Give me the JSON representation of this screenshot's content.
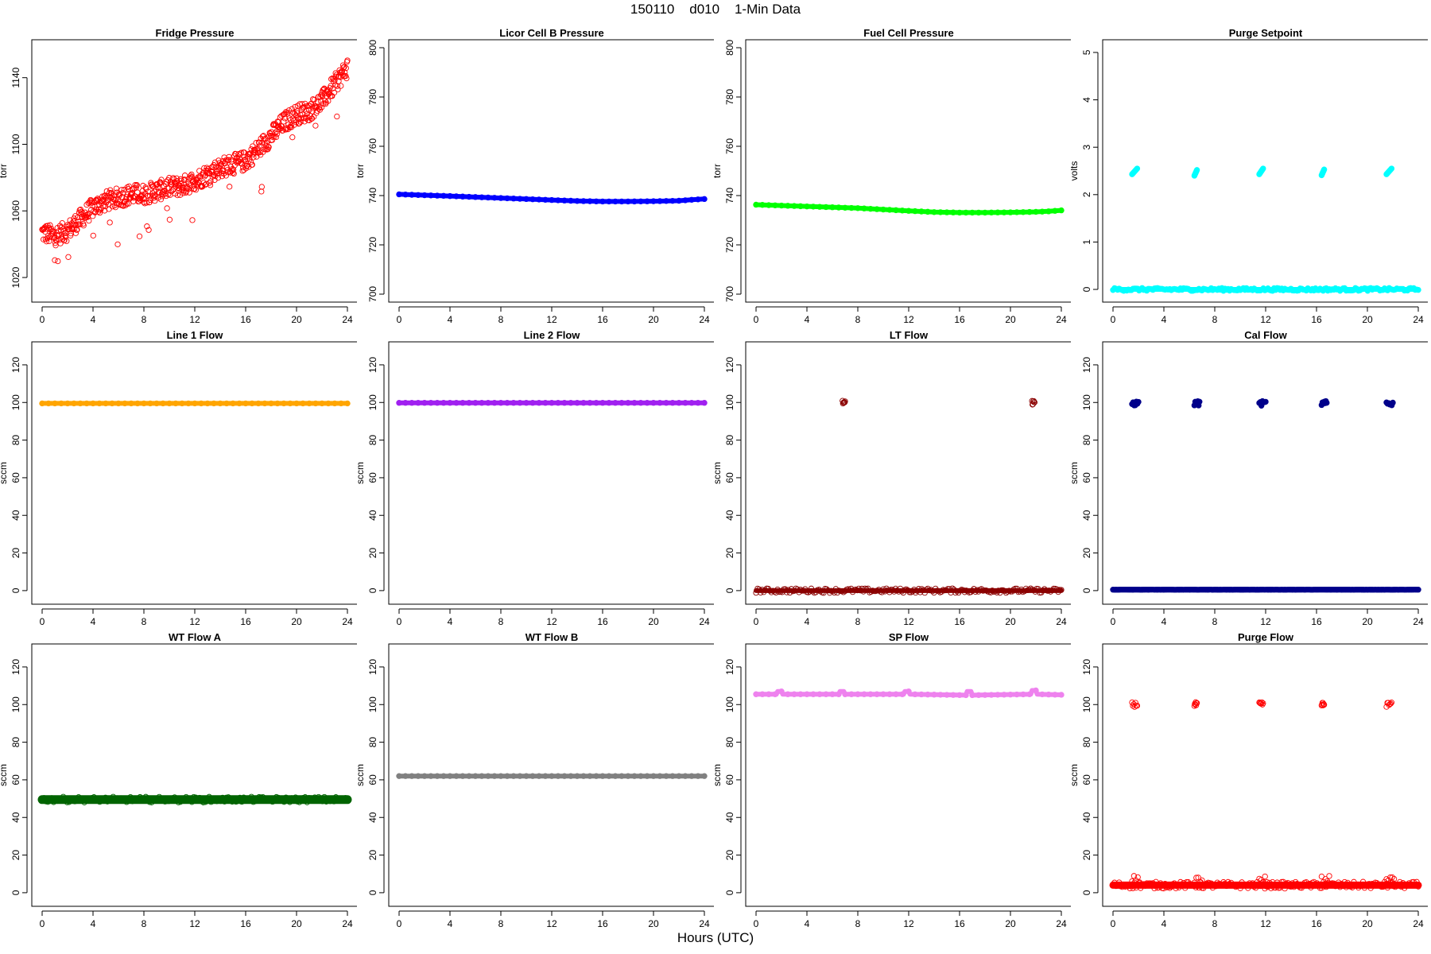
{
  "page": {
    "title": "150110    d010    1-Min Data",
    "x_caption": "Hours (UTC)"
  },
  "colors": {
    "fridge": "#ff0000",
    "licor": "#0000ff",
    "fuel": "#00ff00",
    "purge_setpoint": "#00ffff",
    "line1": "#ffa500",
    "line2": "#a020f0",
    "lt": "#8b0000",
    "cal": "#00008b",
    "wt_a": "#006400",
    "wt_b": "#808080",
    "sp": "#ee82ee",
    "purge_flow": "#ff0000"
  },
  "chart_data": [
    {
      "id": "fridge-pressure",
      "type": "scatter",
      "title": "Fridge Pressure",
      "xlabel": "",
      "ylabel": "torr",
      "marker": "open-circle",
      "color": "#ff0000",
      "xlim": [
        0,
        24
      ],
      "ylim": [
        1010,
        1158
      ],
      "xticks": [
        0,
        4,
        8,
        12,
        16,
        20,
        24
      ],
      "yticks": [
        1020,
        1060,
        1100,
        1140
      ],
      "trend": {
        "x": [
          0,
          1,
          2,
          3,
          4,
          5,
          6,
          7,
          8,
          9,
          10,
          11,
          12,
          13,
          14,
          15,
          16,
          17,
          18,
          19,
          20,
          21,
          22,
          23,
          24
        ],
        "y": [
          1047,
          1045,
          1048,
          1055,
          1062,
          1066,
          1068,
          1070,
          1070,
          1072,
          1074,
          1075,
          1078,
          1082,
          1086,
          1088,
          1090,
          1097,
          1105,
          1113,
          1118,
          1120,
          1126,
          1136,
          1146
        ]
      },
      "noise": 6
    },
    {
      "id": "licor-cell-b-pressure",
      "type": "line",
      "title": "Licor Cell B Pressure",
      "xlabel": "",
      "ylabel": "torr",
      "marker": "filled-circle",
      "color": "#0000ff",
      "xlim": [
        0,
        24
      ],
      "ylim": [
        700,
        800
      ],
      "xticks": [
        0,
        4,
        8,
        12,
        16,
        20,
        24
      ],
      "yticks": [
        700,
        720,
        740,
        760,
        780,
        800
      ],
      "x": [
        0,
        4,
        8,
        12,
        14,
        16,
        18,
        20,
        22,
        23,
        24
      ],
      "y": [
        740.5,
        739.8,
        739.0,
        738.2,
        737.8,
        737.6,
        737.6,
        737.7,
        737.9,
        738.3,
        738.6
      ]
    },
    {
      "id": "fuel-cell-pressure",
      "type": "line",
      "title": "Fuel Cell Pressure",
      "xlabel": "",
      "ylabel": "torr",
      "marker": "filled-circle",
      "color": "#00ff00",
      "xlim": [
        0,
        24
      ],
      "ylim": [
        700,
        800
      ],
      "xticks": [
        0,
        4,
        8,
        12,
        16,
        20,
        24
      ],
      "yticks": [
        700,
        720,
        740,
        760,
        780,
        800
      ],
      "x": [
        0,
        4,
        8,
        12,
        14,
        16,
        18,
        20,
        22,
        23,
        24
      ],
      "y": [
        736.3,
        735.6,
        734.9,
        733.8,
        733.3,
        733.1,
        733.1,
        733.2,
        733.4,
        733.6,
        734.0
      ]
    },
    {
      "id": "purge-setpoint",
      "type": "scatter",
      "title": "Purge Setpoint",
      "xlabel": "",
      "ylabel": "volts",
      "marker": "filled-circle",
      "color": "#00ffff",
      "xlim": [
        0,
        24
      ],
      "ylim": [
        -0.1,
        5.1
      ],
      "xticks": [
        0,
        4,
        8,
        12,
        16,
        20,
        24
      ],
      "yticks": [
        0,
        1,
        2,
        3,
        4,
        5
      ],
      "baseline": 0,
      "bursts": [
        {
          "x0": 1.5,
          "x1": 1.9,
          "y": 2.5
        },
        {
          "x0": 6.4,
          "x1": 6.6,
          "y": 2.47
        },
        {
          "x0": 11.5,
          "x1": 11.8,
          "y": 2.5
        },
        {
          "x0": 16.4,
          "x1": 16.6,
          "y": 2.48
        },
        {
          "x0": 21.5,
          "x1": 21.9,
          "y": 2.5
        }
      ]
    },
    {
      "id": "line-1-flow",
      "type": "line",
      "title": "Line 1 Flow",
      "xlabel": "",
      "ylabel": "sccm",
      "marker": "filled-circle",
      "color": "#ffa500",
      "xlim": [
        0,
        24
      ],
      "ylim": [
        -3,
        128
      ],
      "xticks": [
        0,
        4,
        8,
        12,
        16,
        20,
        24
      ],
      "yticks": [
        0,
        20,
        40,
        60,
        80,
        100,
        120
      ],
      "x": [
        0,
        24
      ],
      "y": [
        99.5,
        99.5
      ]
    },
    {
      "id": "line-2-flow",
      "type": "line",
      "title": "Line 2 Flow",
      "xlabel": "",
      "ylabel": "sccm",
      "marker": "filled-circle",
      "color": "#a020f0",
      "xlim": [
        0,
        24
      ],
      "ylim": [
        -3,
        128
      ],
      "xticks": [
        0,
        4,
        8,
        12,
        16,
        20,
        24
      ],
      "yticks": [
        0,
        20,
        40,
        60,
        80,
        100,
        120
      ],
      "x": [
        0,
        24
      ],
      "y": [
        99.8,
        99.8
      ]
    },
    {
      "id": "lt-flow",
      "type": "scatter",
      "title": "LT Flow",
      "xlabel": "",
      "ylabel": "sccm",
      "marker": "open-circle",
      "color": "#8b0000",
      "xlim": [
        0,
        24
      ],
      "ylim": [
        -3,
        128
      ],
      "xticks": [
        0,
        4,
        8,
        12,
        16,
        20,
        24
      ],
      "yticks": [
        0,
        20,
        40,
        60,
        80,
        100,
        120
      ],
      "baseline": 0,
      "bursts": [
        {
          "x0": 6.8,
          "x1": 7.0,
          "y": 100
        },
        {
          "x0": 21.7,
          "x1": 21.9,
          "y": 100
        }
      ]
    },
    {
      "id": "cal-flow",
      "type": "scatter",
      "title": "Cal Flow",
      "xlabel": "",
      "ylabel": "sccm",
      "marker": "filled-circle",
      "color": "#00008b",
      "xlim": [
        0,
        24
      ],
      "ylim": [
        -3,
        128
      ],
      "xticks": [
        0,
        4,
        8,
        12,
        16,
        20,
        24
      ],
      "yticks": [
        0,
        20,
        40,
        60,
        80,
        100,
        120
      ],
      "baseline": 0.5,
      "bursts": [
        {
          "x0": 1.5,
          "x1": 2.0,
          "y": 99.5
        },
        {
          "x0": 6.4,
          "x1": 6.8,
          "y": 99.5
        },
        {
          "x0": 11.5,
          "x1": 12.0,
          "y": 99.5
        },
        {
          "x0": 16.4,
          "x1": 16.8,
          "y": 99.5
        },
        {
          "x0": 21.5,
          "x1": 22.0,
          "y": 99.5
        }
      ]
    },
    {
      "id": "wt-flow-a",
      "type": "line",
      "title": "WT Flow A",
      "xlabel": "",
      "ylabel": "sccm",
      "marker": "open-circle",
      "color": "#006400",
      "xlim": [
        0,
        24
      ],
      "ylim": [
        -3,
        128
      ],
      "xticks": [
        0,
        4,
        8,
        12,
        16,
        20,
        24
      ],
      "yticks": [
        0,
        20,
        40,
        60,
        80,
        100,
        120
      ],
      "x": [
        0,
        24
      ],
      "y": [
        49.5,
        49.5
      ]
    },
    {
      "id": "wt-flow-b",
      "type": "line",
      "title": "WT Flow B",
      "xlabel": "",
      "ylabel": "sccm",
      "marker": "filled-circle",
      "color": "#808080",
      "xlim": [
        0,
        24
      ],
      "ylim": [
        -3,
        128
      ],
      "xticks": [
        0,
        4,
        8,
        12,
        16,
        20,
        24
      ],
      "yticks": [
        0,
        20,
        40,
        60,
        80,
        100,
        120
      ],
      "x": [
        0,
        24
      ],
      "y": [
        62,
        62
      ]
    },
    {
      "id": "sp-flow",
      "type": "line",
      "title": "SP Flow",
      "xlabel": "",
      "ylabel": "sccm",
      "marker": "filled-circle",
      "color": "#ee82ee",
      "xlim": [
        0,
        24
      ],
      "ylim": [
        -3,
        128
      ],
      "xticks": [
        0,
        4,
        8,
        12,
        16,
        20,
        24
      ],
      "yticks": [
        0,
        20,
        40,
        60,
        80,
        100,
        120
      ],
      "x": [
        0,
        1.6,
        1.7,
        2.0,
        2.1,
        6.5,
        6.6,
        6.9,
        7.0,
        11.6,
        11.7,
        12.0,
        12.1,
        16.5,
        16.6,
        16.9,
        17.0,
        21.6,
        21.7,
        22.0,
        22.1,
        24
      ],
      "y": [
        105.5,
        105.5,
        107,
        107,
        105.5,
        105.5,
        107,
        107,
        105.5,
        105.5,
        107,
        107,
        105.5,
        105,
        107,
        107,
        105,
        105.5,
        107.5,
        107.5,
        105.5,
        105.2
      ]
    },
    {
      "id": "purge-flow",
      "type": "scatter",
      "title": "Purge Flow",
      "xlabel": "",
      "ylabel": "sccm",
      "marker": "open-circle",
      "color": "#ff0000",
      "xlim": [
        0,
        24
      ],
      "ylim": [
        -3,
        128
      ],
      "xticks": [
        0,
        4,
        8,
        12,
        16,
        20,
        24
      ],
      "yticks": [
        0,
        20,
        40,
        60,
        80,
        100,
        120
      ],
      "baseline": 4,
      "bursts": [
        {
          "x0": 1.5,
          "x1": 1.9,
          "y": 100
        },
        {
          "x0": 6.4,
          "x1": 6.6,
          "y": 100
        },
        {
          "x0": 11.5,
          "x1": 11.8,
          "y": 100
        },
        {
          "x0": 16.4,
          "x1": 16.6,
          "y": 100
        },
        {
          "x0": 21.5,
          "x1": 21.9,
          "y": 100
        }
      ]
    }
  ]
}
